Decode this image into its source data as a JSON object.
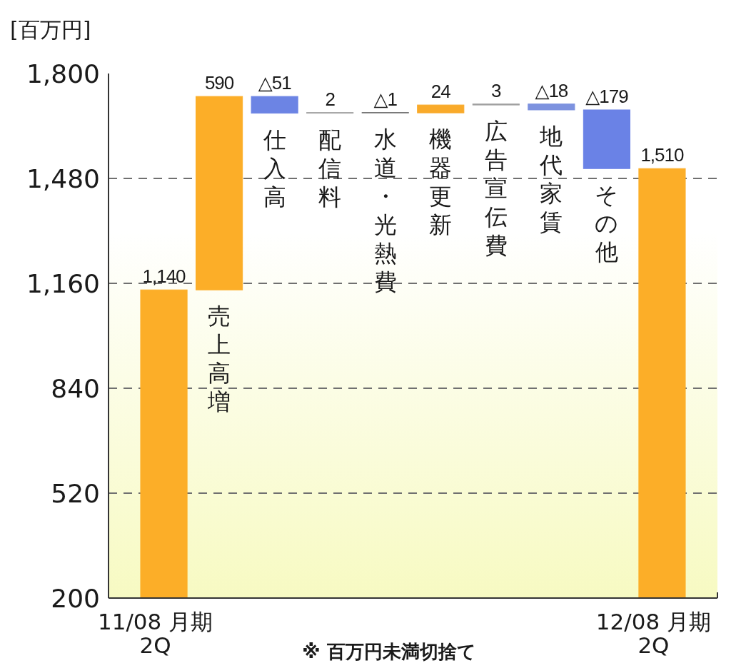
{
  "chart_data": {
    "type": "bar",
    "ylabel": "[百万円]",
    "categories": [
      "11/08 月期\n2Q",
      "売上高増",
      "仕入高",
      "配信料",
      "水道・光熱費",
      "機器更新",
      "広告宣伝費",
      "地代家賃",
      "その他",
      "12/08 月期\n2Q"
    ],
    "values": [
      1140,
      590,
      -51,
      2,
      -1,
      24,
      3,
      -18,
      -179,
      1510
    ],
    "base": [
      null,
      1140,
      1730,
      1679,
      1681,
      1680,
      1704,
      1707,
      1689,
      null
    ],
    "colors": [
      "#fcae28",
      "#fcae28",
      "#6c84e4",
      "#a0a0a0",
      "#666666",
      "#f9aa2a",
      "#a0a0a0",
      "#7d92df",
      "#6a82e6",
      "#fcae28"
    ],
    "value_labels": [
      "1,140",
      "590",
      "△51",
      "2",
      "△1",
      "24",
      "3",
      "△18",
      "△179",
      "1,510"
    ],
    "ylim": [
      200,
      1800
    ],
    "yticks": [
      {
        "value": 200,
        "label": "200"
      },
      {
        "value": 520,
        "label": "520"
      },
      {
        "value": 840,
        "label": "840"
      },
      {
        "value": 1160,
        "label": "1,160"
      },
      {
        "value": 1480,
        "label": "1,480"
      },
      {
        "value": 1800,
        "label": "1,800"
      }
    ],
    "grid": "y",
    "annotations": [
      "※ 百万円未満切捨て"
    ]
  }
}
